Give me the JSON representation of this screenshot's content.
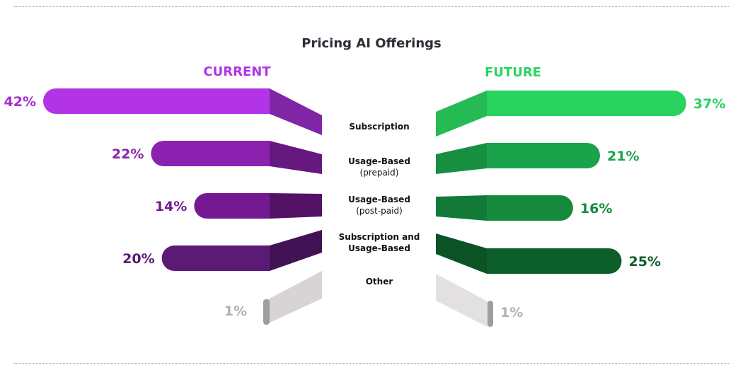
{
  "chart_data": {
    "type": "bar",
    "title": "Pricing AI Offerings",
    "categories": [
      [
        "Subscription"
      ],
      [
        "Usage-Based",
        "(prepaid)"
      ],
      [
        "Usage-Based",
        "(post-paid)"
      ],
      [
        "Subscription and",
        "Usage-Based"
      ],
      [
        "Other"
      ]
    ],
    "series": [
      {
        "name": "CURRENT",
        "values": [
          42,
          22,
          14,
          20,
          1
        ],
        "labels": [
          "42%",
          "22%",
          "14%",
          "20%",
          "1%"
        ],
        "colors": [
          "#b234e6",
          "#8c21b0",
          "#74198f",
          "#5b1a75",
          "#bdbdbd"
        ],
        "label_colors": [
          "#a52ed6",
          "#8a22aa",
          "#74198f",
          "#5b1a75",
          "#b0b0b0"
        ]
      },
      {
        "name": "FUTURE",
        "values": [
          37,
          21,
          16,
          25,
          1
        ],
        "labels": [
          "37%",
          "21%",
          "16%",
          "25%",
          "1%"
        ],
        "colors": [
          "#2ad35f",
          "#1aa34a",
          "#158a3d",
          "#0c5e2a",
          "#bdbdbd"
        ],
        "label_colors": [
          "#2ad35f",
          "#1aa34a",
          "#158a3d",
          "#0c5e2a",
          "#b0b0b0"
        ]
      }
    ],
    "header_colors": {
      "current": "#b234e6",
      "future": "#2ad35f"
    }
  }
}
